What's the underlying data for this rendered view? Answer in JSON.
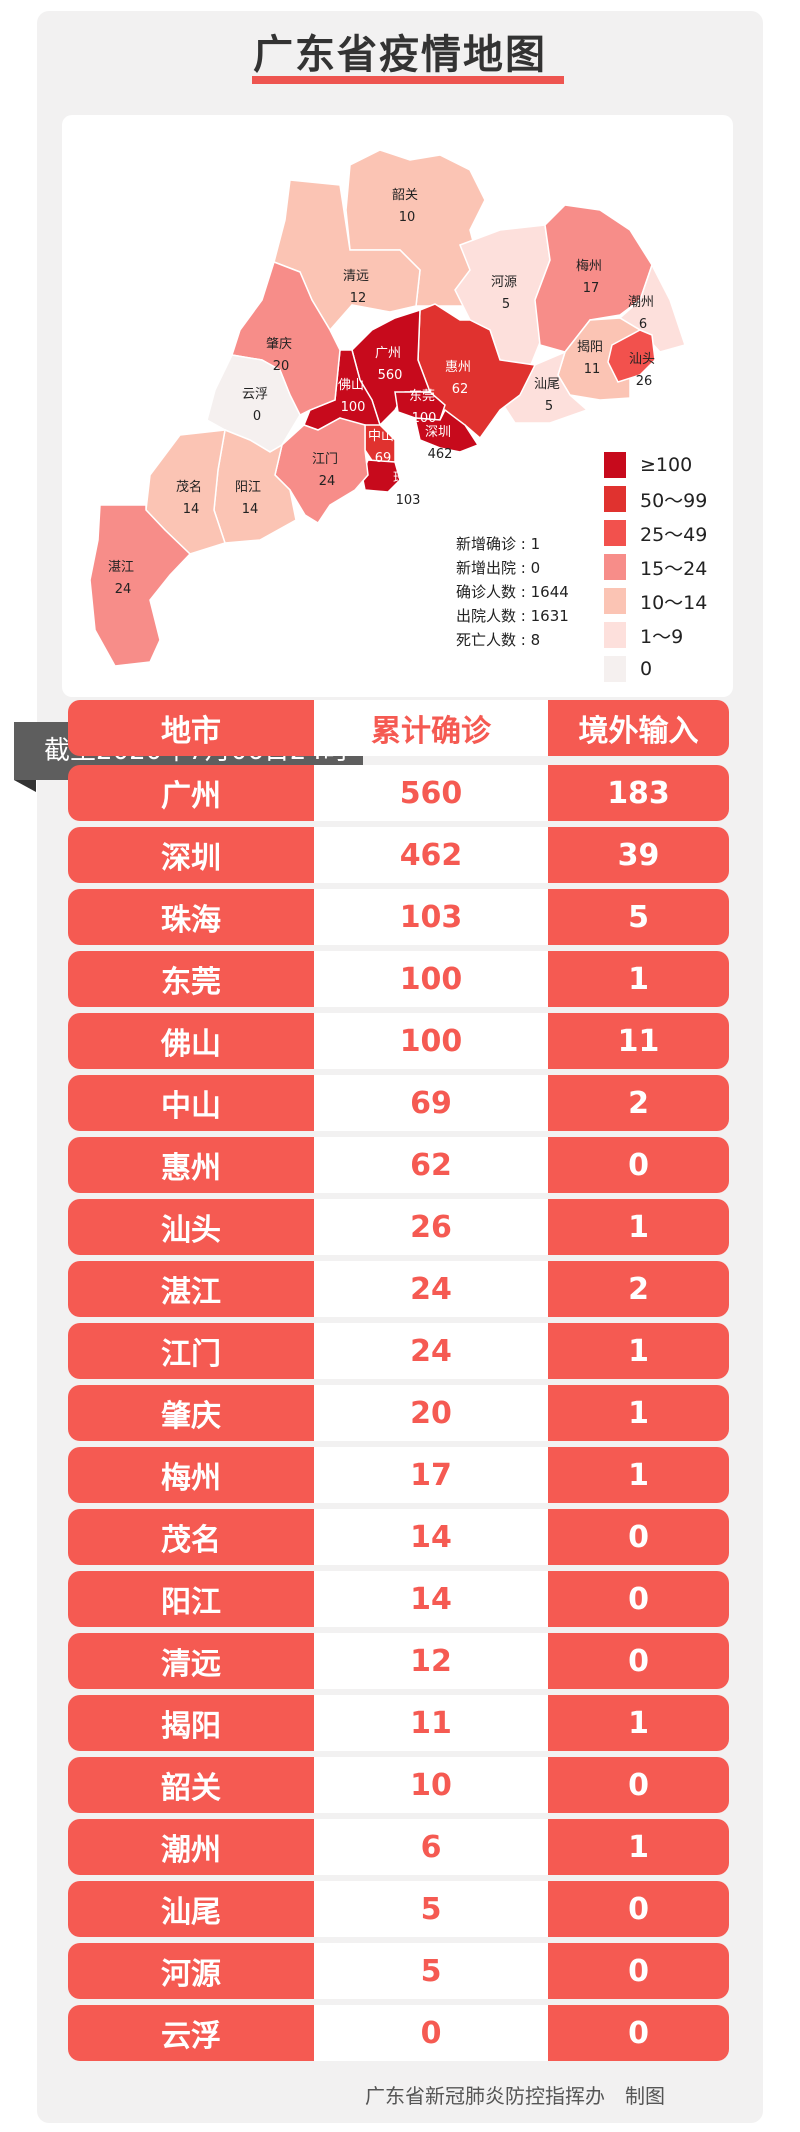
{
  "title": "广东省疫情地图",
  "map": {
    "regions": [
      {
        "name": "韶关",
        "value": "10"
      },
      {
        "name": "清远",
        "value": "12"
      },
      {
        "name": "河源",
        "value": "5"
      },
      {
        "name": "梅州",
        "value": "17"
      },
      {
        "name": "潮州",
        "value": "6"
      },
      {
        "name": "揭阳",
        "value": "11"
      },
      {
        "name": "汕头",
        "value": "26"
      },
      {
        "name": "汕尾",
        "value": "5"
      },
      {
        "name": "惠州",
        "value": "62"
      },
      {
        "name": "广州",
        "value": "560"
      },
      {
        "name": "东莞",
        "value": "100"
      },
      {
        "name": "深圳",
        "value": "462"
      },
      {
        "name": "佛山",
        "value": "100"
      },
      {
        "name": "中山",
        "value": "69"
      },
      {
        "name": "珠海",
        "value": "103"
      },
      {
        "name": "江门",
        "value": "24"
      },
      {
        "name": "肇庆",
        "value": "20"
      },
      {
        "name": "云浮",
        "value": "0"
      },
      {
        "name": "阳江",
        "value": "14"
      },
      {
        "name": "茂名",
        "value": "14"
      },
      {
        "name": "湛江",
        "value": "24"
      }
    ],
    "stats": [
      {
        "label": "新增确诊",
        "value": "1"
      },
      {
        "label": "新增出院",
        "value": "0"
      },
      {
        "label": "确诊人数",
        "value": "1644"
      },
      {
        "label": "出院人数",
        "value": "1631"
      },
      {
        "label": "死亡人数",
        "value": "8"
      }
    ],
    "legend": [
      {
        "label": "≥100",
        "color": "#c70a1c"
      },
      {
        "label": "50～99",
        "color": "#e0322f"
      },
      {
        "label": "25～49",
        "color": "#f2514d"
      },
      {
        "label": "15～24",
        "color": "#f78d89"
      },
      {
        "label": "10～14",
        "color": "#fbc4b4"
      },
      {
        "label": "1～9",
        "color": "#fde0dc"
      },
      {
        "label": "0",
        "color": "#f5f0ef"
      }
    ]
  },
  "date_banner": "截至2020年7月06日24时",
  "table": {
    "headers": [
      "地市",
      "累计确诊",
      "境外输入"
    ],
    "rows": [
      [
        "广州",
        "560",
        "183"
      ],
      [
        "深圳",
        "462",
        "39"
      ],
      [
        "珠海",
        "103",
        "5"
      ],
      [
        "东莞",
        "100",
        "1"
      ],
      [
        "佛山",
        "100",
        "11"
      ],
      [
        "中山",
        "69",
        "2"
      ],
      [
        "惠州",
        "62",
        "0"
      ],
      [
        "汕头",
        "26",
        "1"
      ],
      [
        "湛江",
        "24",
        "2"
      ],
      [
        "江门",
        "24",
        "1"
      ],
      [
        "肇庆",
        "20",
        "1"
      ],
      [
        "梅州",
        "17",
        "1"
      ],
      [
        "茂名",
        "14",
        "0"
      ],
      [
        "阳江",
        "14",
        "0"
      ],
      [
        "清远",
        "12",
        "0"
      ],
      [
        "揭阳",
        "11",
        "1"
      ],
      [
        "韶关",
        "10",
        "0"
      ],
      [
        "潮州",
        "6",
        "1"
      ],
      [
        "汕尾",
        "5",
        "0"
      ],
      [
        "河源",
        "5",
        "0"
      ],
      [
        "云浮",
        "0",
        "0"
      ]
    ]
  },
  "footer": "广东省新冠肺炎防控指挥办　制图"
}
